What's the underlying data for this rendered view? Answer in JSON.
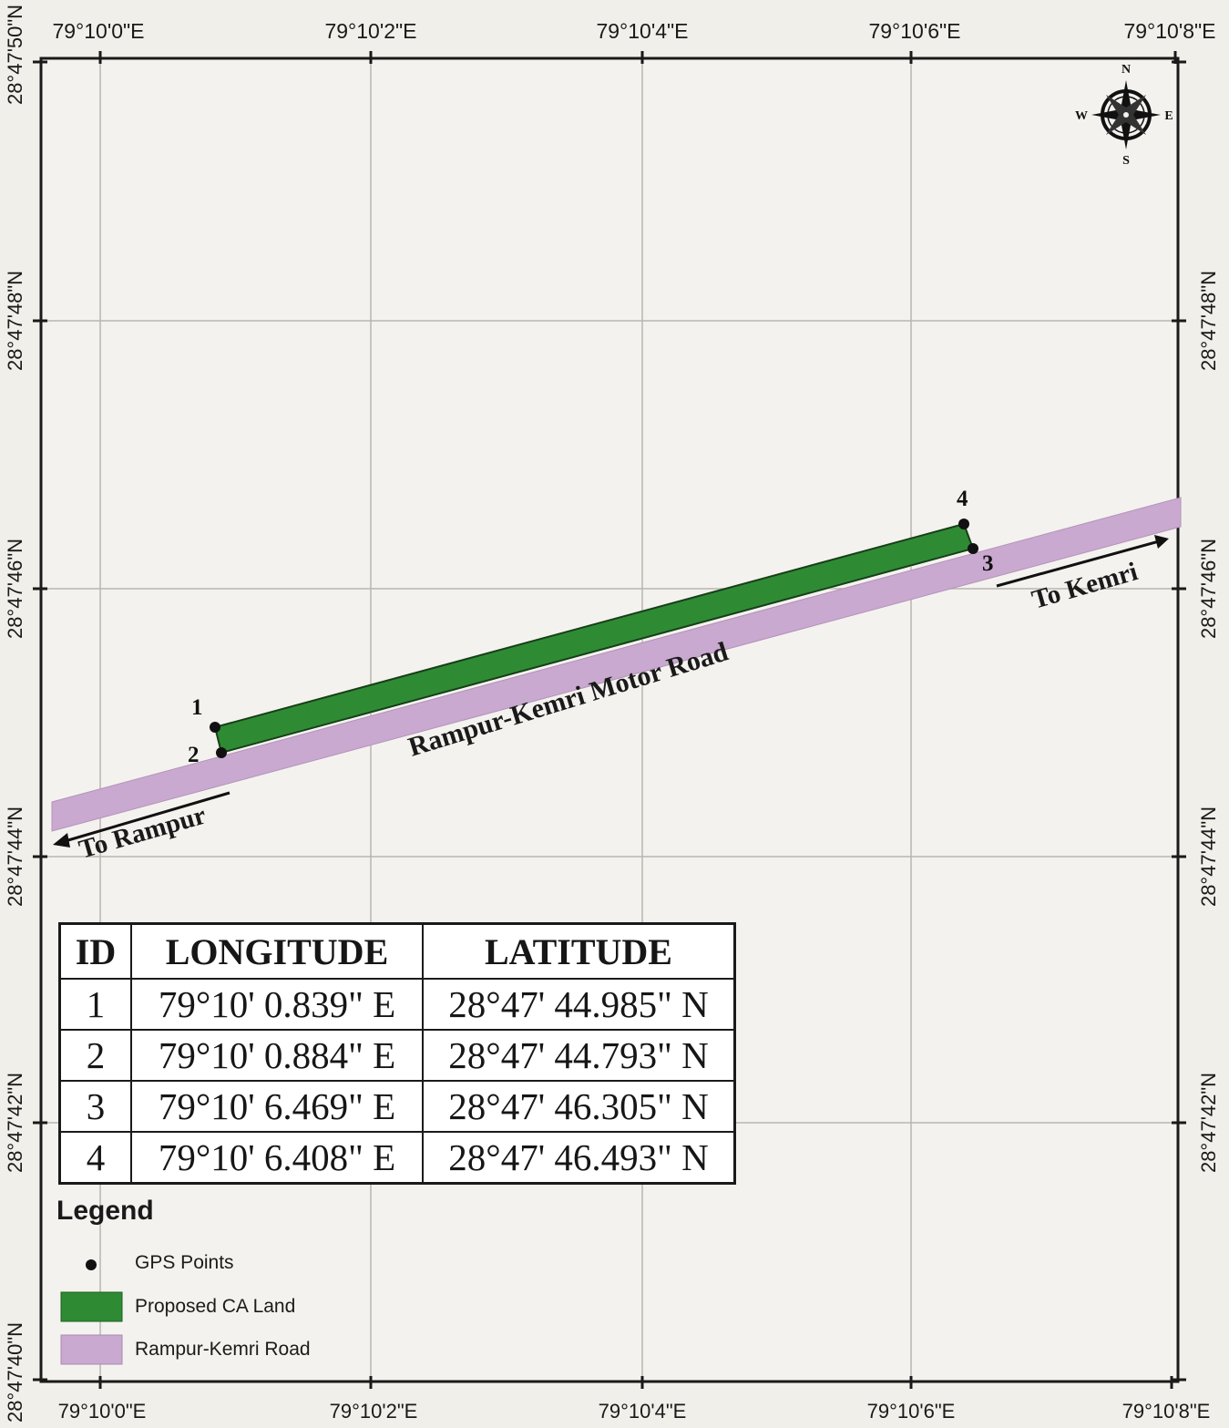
{
  "map": {
    "longitude_ticks": [
      "79°10'0\"E",
      "79°10'2\"E",
      "79°10'4\"E",
      "79°10'6\"E",
      "79°10'8\"E"
    ],
    "latitude_ticks": [
      "28°47'50\"N",
      "28°47'48\"N",
      "28°47'46\"N",
      "28°47'44\"N",
      "28°47'42\"N",
      "28°47'40\"N"
    ],
    "north_arrow": {
      "icon": "compass-rose-icon",
      "n": "N",
      "e": "E",
      "s": "S",
      "w": "W"
    },
    "gps_points": [
      {
        "id": "1",
        "lon_sec": 0.839,
        "lat_sec": 44.985
      },
      {
        "id": "2",
        "lon_sec": 0.884,
        "lat_sec": 44.793
      },
      {
        "id": "3",
        "lon_sec": 6.469,
        "lat_sec": 46.305
      },
      {
        "id": "4",
        "lon_sec": 6.408,
        "lat_sec": 46.493
      }
    ],
    "road_label": "Rampur-Kemri Motor Road",
    "to_rampur": "To Rampur",
    "to_kemri": "To Kemri",
    "colors": {
      "ca_land": "#2e8b33",
      "road": "#c9a9cf",
      "grid": "#b9b6b0",
      "frame": "#1a1a1a"
    }
  },
  "table": {
    "headers": [
      "ID",
      "LONGITUDE",
      "LATITUDE"
    ],
    "rows": [
      [
        "1",
        "79°10' 0.839\" E",
        "28°47' 44.985\" N"
      ],
      [
        "2",
        "79°10' 0.884\" E",
        "28°47' 44.793\" N"
      ],
      [
        "3",
        "79°10' 6.469\" E",
        "28°47' 46.305\" N"
      ],
      [
        "4",
        "79°10' 6.408\" E",
        "28°47' 46.493\" N"
      ]
    ]
  },
  "legend": {
    "title": "Legend",
    "items": [
      {
        "label": "GPS Points",
        "icon": "gps-point-icon"
      },
      {
        "label": "Proposed CA Land",
        "color": "#2e8b33"
      },
      {
        "label": "Rampur-Kemri Road",
        "color": "#c9a9cf"
      }
    ]
  }
}
